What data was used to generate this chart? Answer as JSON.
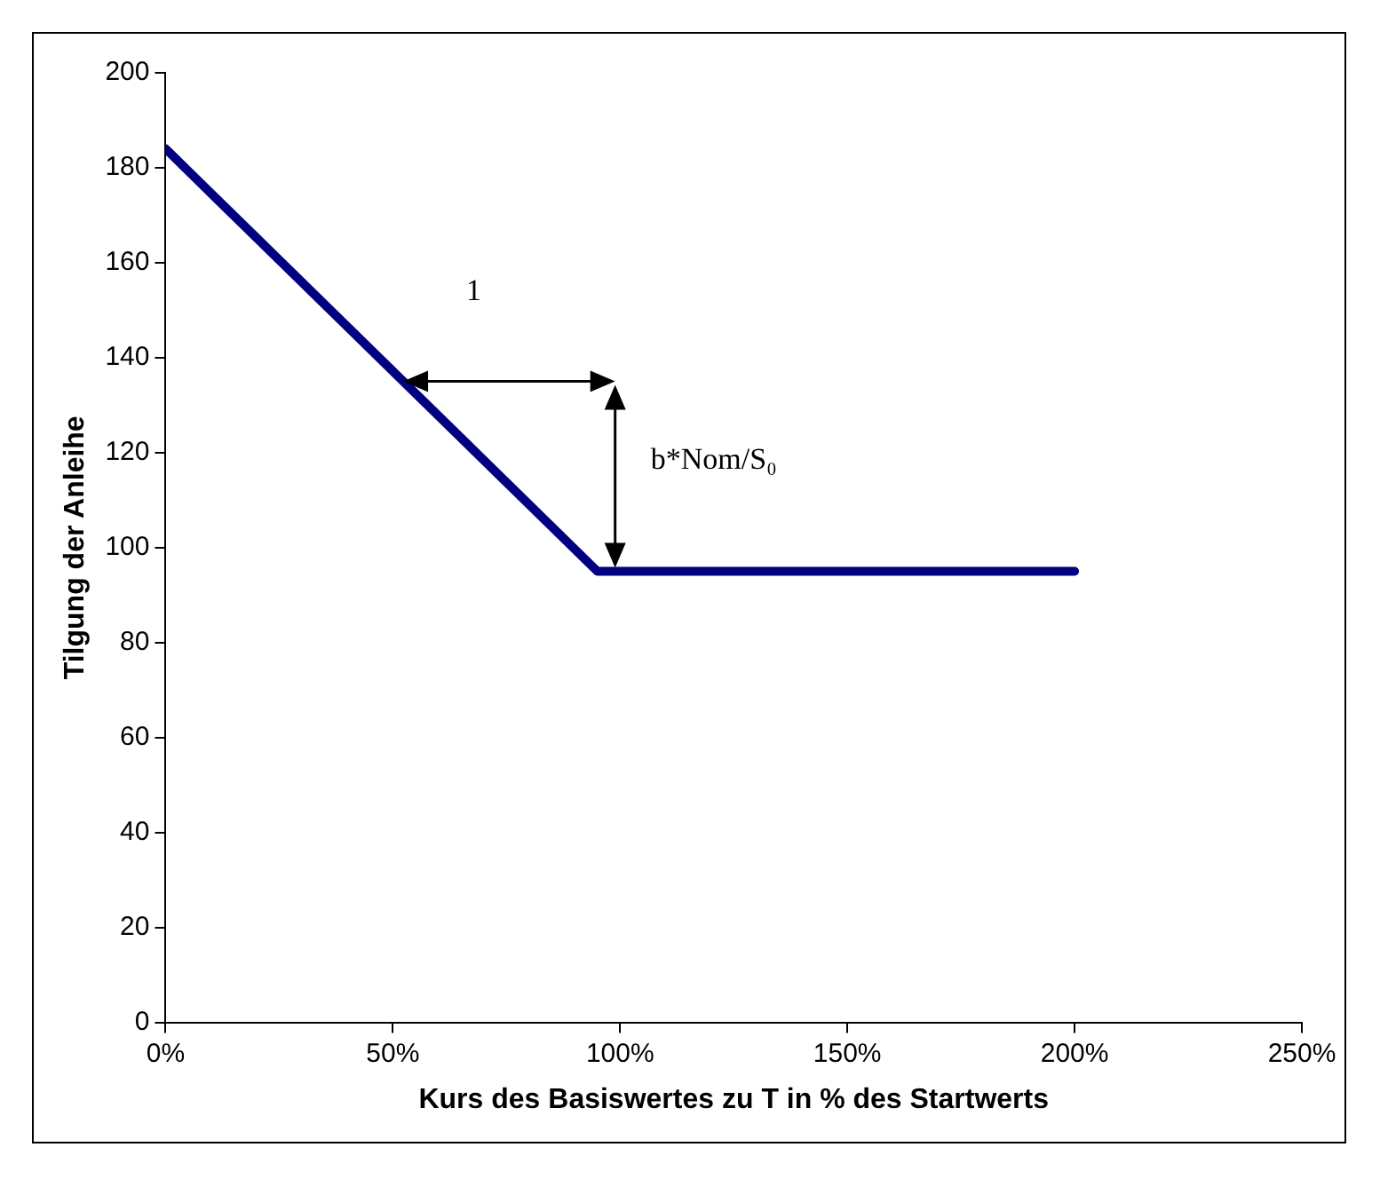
{
  "chart_data": {
    "type": "line",
    "xlabel": "Kurs des Basiswertes zu T in % des Startwerts",
    "ylabel": "Tilgung der Anleihe",
    "x": [
      0,
      95,
      200
    ],
    "series": [
      {
        "color": "#000080",
        "values": [
          184,
          95,
          95
        ]
      }
    ],
    "xlim": [
      0,
      250
    ],
    "xticks": [
      {
        "value": 0,
        "label": "0%"
      },
      {
        "value": 50,
        "label": "50%"
      },
      {
        "value": 100,
        "label": "100%"
      },
      {
        "value": 150,
        "label": "150%"
      },
      {
        "value": 200,
        "label": "200%"
      },
      {
        "value": 250,
        "label": "250%"
      }
    ],
    "ylim": [
      0,
      200
    ],
    "yticks": [
      0,
      20,
      40,
      60,
      80,
      100,
      120,
      140,
      160,
      180,
      200
    ],
    "grid": false,
    "legend": false,
    "marker": "none",
    "line_style": "solid",
    "annotations": [
      "1",
      "b*Nom/S₀"
    ]
  }
}
